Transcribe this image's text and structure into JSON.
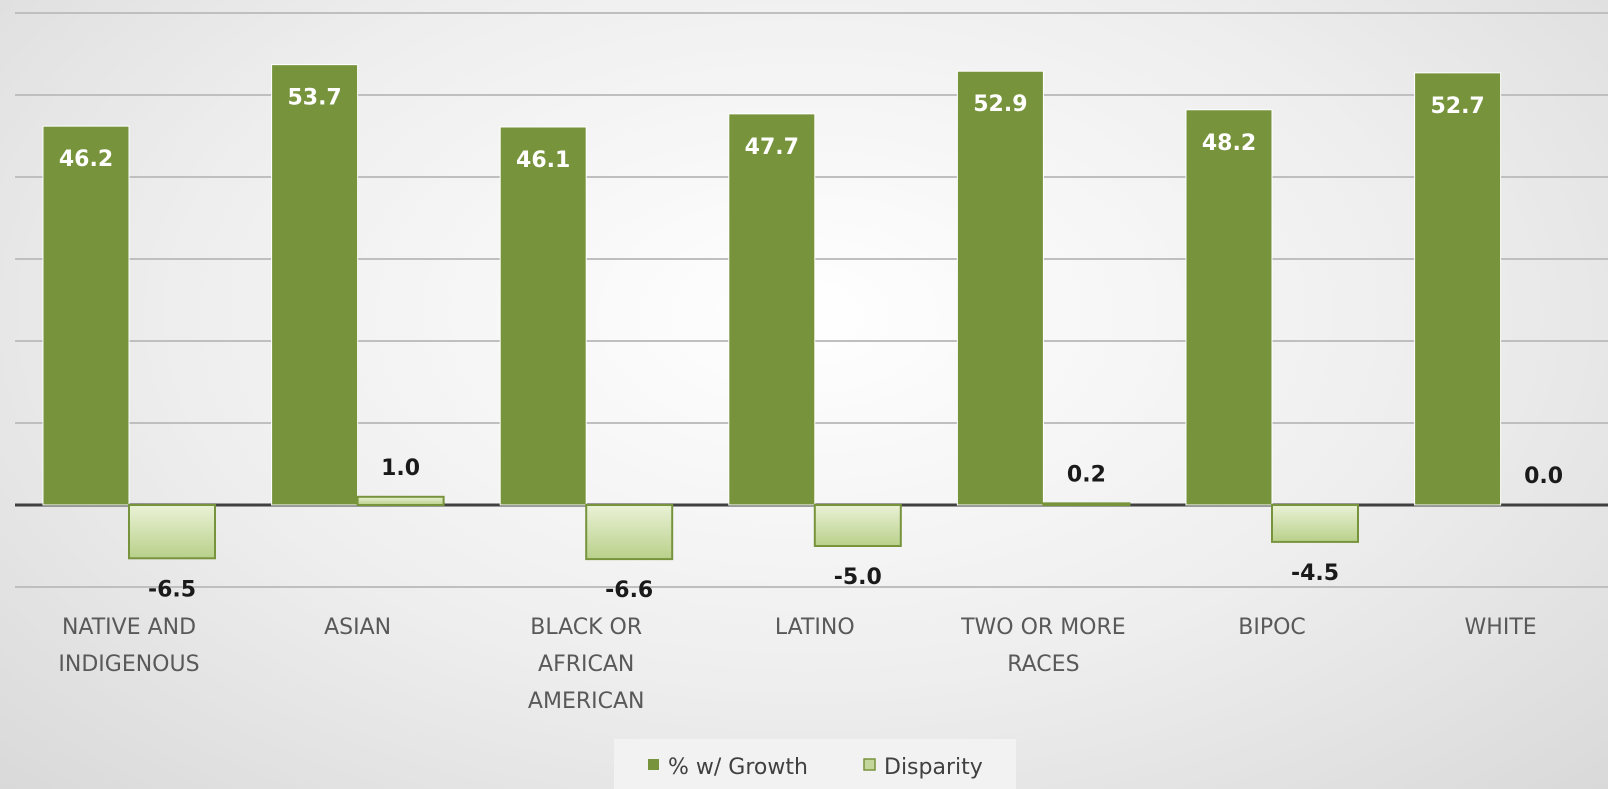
{
  "chart_data": {
    "type": "bar",
    "categories": [
      [
        "NATIVE AND",
        "INDIGENOUS"
      ],
      [
        "ASIAN"
      ],
      [
        "BLACK OR",
        "AFRICAN",
        "AMERICAN"
      ],
      [
        "LATINO"
      ],
      [
        "TWO OR MORE",
        "RACES"
      ],
      [
        "BIPOC"
      ],
      [
        "WHITE"
      ]
    ],
    "series": [
      {
        "name": "% w/ Growth",
        "color": "#77933c",
        "values": [
          46.2,
          53.7,
          46.1,
          47.7,
          52.9,
          48.2,
          52.7
        ],
        "labels": [
          "46.2",
          "53.7",
          "46.1",
          "47.7",
          "52.9",
          "48.2",
          "52.7"
        ]
      },
      {
        "name": "Disparity",
        "color": "#c3d69b",
        "values": [
          -6.5,
          1.0,
          -6.6,
          -5.0,
          0.2,
          -4.5,
          0.0
        ],
        "labels": [
          "-6.5",
          "1.0",
          "-6.6",
          "-5.0",
          "0.2",
          "-4.5",
          "0.0"
        ]
      }
    ],
    "ylim": [
      -10,
      60
    ],
    "grid": true,
    "legend_position": "bottom",
    "title": "",
    "xlabel": "",
    "ylabel": ""
  }
}
